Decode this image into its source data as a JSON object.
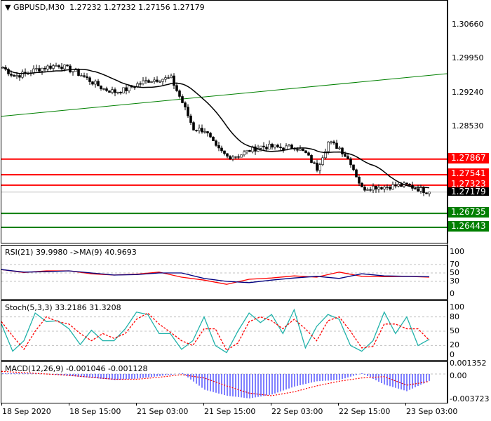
{
  "header": {
    "symbol": "GBPUSD,M30",
    "ohlc": "1.27232 1.27232 1.27156 1.27179"
  },
  "price_axis": {
    "ticks": [
      "1.30660",
      "1.29950",
      "1.29240",
      "1.28530"
    ],
    "current": "1.27179"
  },
  "levels": [
    {
      "label": "1.27867",
      "value": 1.27867,
      "color": "#ff0000"
    },
    {
      "label": "1.27541",
      "value": 1.27541,
      "color": "#ff0000"
    },
    {
      "label": "1.27323",
      "value": 1.27323,
      "color": "#ff0000"
    },
    {
      "label": "1.26735",
      "value": 1.26735,
      "color": "#007f00"
    },
    {
      "label": "1.26443",
      "value": 1.26443,
      "color": "#007f00"
    }
  ],
  "trendline": {
    "start": 1.2876,
    "end": 1.2965,
    "color": "#008000"
  },
  "time_axis": [
    "18 Sep 2020",
    "18 Sep 15:00",
    "21 Sep 03:00",
    "21 Sep 15:00",
    "22 Sep 03:00",
    "22 Sep 15:00",
    "23 Sep 03:00"
  ],
  "chart_data": [
    {
      "type": "candlestick",
      "title": "GBPUSD,M30",
      "closes": [
        1.2978,
        1.296,
        1.2965,
        1.2974,
        1.2979,
        1.2983,
        1.2973,
        1.2962,
        1.2947,
        1.2933,
        1.2927,
        1.2932,
        1.2943,
        1.2951,
        1.2954,
        1.2955,
        1.2905,
        1.285,
        1.2847,
        1.281,
        1.2792,
        1.2794,
        1.2805,
        1.2813,
        1.2812,
        1.281,
        1.2813,
        1.2798,
        1.2767,
        1.2822,
        1.281,
        1.278,
        1.2725,
        1.2729,
        1.2729,
        1.2731,
        1.2732,
        1.2725,
        1.27179
      ],
      "ylim": [
        1.26,
        1.3117
      ]
    },
    {
      "type": "line",
      "title": "RSI(21) 39.9980  ->MA(9) 40.9693",
      "levels": [
        "100",
        "70",
        "50",
        "30",
        "0"
      ],
      "ylim": [
        0,
        100
      ],
      "series": [
        {
          "name": "RSI(21)",
          "color": "#ff0000",
          "values": [
            58,
            51,
            55,
            55,
            48,
            45,
            47,
            52,
            40,
            33,
            23,
            35,
            38,
            43,
            40,
            52,
            42,
            41,
            42,
            40
          ]
        },
        {
          "name": "MA(9)",
          "color": "#00007f",
          "values": [
            58,
            52,
            53,
            55,
            50,
            45,
            46,
            50,
            50,
            37,
            30,
            27,
            33,
            38,
            42,
            37,
            48,
            43,
            42,
            41
          ]
        }
      ]
    },
    {
      "type": "line",
      "title": "Stoch(5,3,3) 33.2186 31.3208",
      "levels": [
        "100",
        "80",
        "50",
        "20",
        "0"
      ],
      "ylim": [
        0,
        100
      ],
      "series": [
        {
          "name": "main",
          "color": "#20b2aa",
          "values": [
            65,
            8,
            30,
            88,
            70,
            72,
            55,
            22,
            52,
            30,
            30,
            55,
            90,
            85,
            45,
            45,
            12,
            30,
            80,
            20,
            5,
            50,
            88,
            68,
            85,
            45,
            95,
            15,
            60,
            85,
            75,
            20,
            8,
            30,
            90,
            45,
            80,
            20,
            33
          ]
        },
        {
          "name": "signal",
          "color": "#ff0000",
          "values": [
            70,
            40,
            12,
            50,
            80,
            70,
            65,
            45,
            30,
            45,
            35,
            45,
            75,
            88,
            65,
            48,
            30,
            20,
            55,
            55,
            10,
            25,
            70,
            80,
            72,
            55,
            75,
            55,
            30,
            72,
            80,
            50,
            15,
            18,
            65,
            65,
            55,
            55,
            31
          ]
        }
      ]
    },
    {
      "type": "bar",
      "title": "MACD(12,26,9) -0.001046 -0.001128",
      "levels": [
        "0.001352",
        "0.00",
        "-0.003723"
      ],
      "ylim": [
        -0.003723,
        0.001352
      ],
      "series": [
        {
          "name": "MACD",
          "color": "#0000ff",
          "values": [
            0.0001,
            0.0001,
            0,
            -0.0003,
            -0.0006,
            -0.0009,
            -0.0007,
            -0.0003,
            0.0001,
            -0.0024,
            -0.0033,
            -0.0037,
            -0.0031,
            -0.0019,
            -0.0011,
            -0.0009,
            0.0001,
            -0.0016,
            -0.0026,
            -0.001046
          ]
        },
        {
          "name": "signal",
          "color": "#ff0000",
          "values": [
            0.0004,
            0.0002,
            0,
            -0.0002,
            -0.0005,
            -0.0008,
            -0.0008,
            -0.0005,
            -0.0001,
            -0.0006,
            -0.0018,
            -0.0029,
            -0.0033,
            -0.0027,
            -0.0018,
            -0.0011,
            -0.0006,
            -0.0004,
            -0.0017,
            -0.001128
          ]
        }
      ]
    }
  ]
}
